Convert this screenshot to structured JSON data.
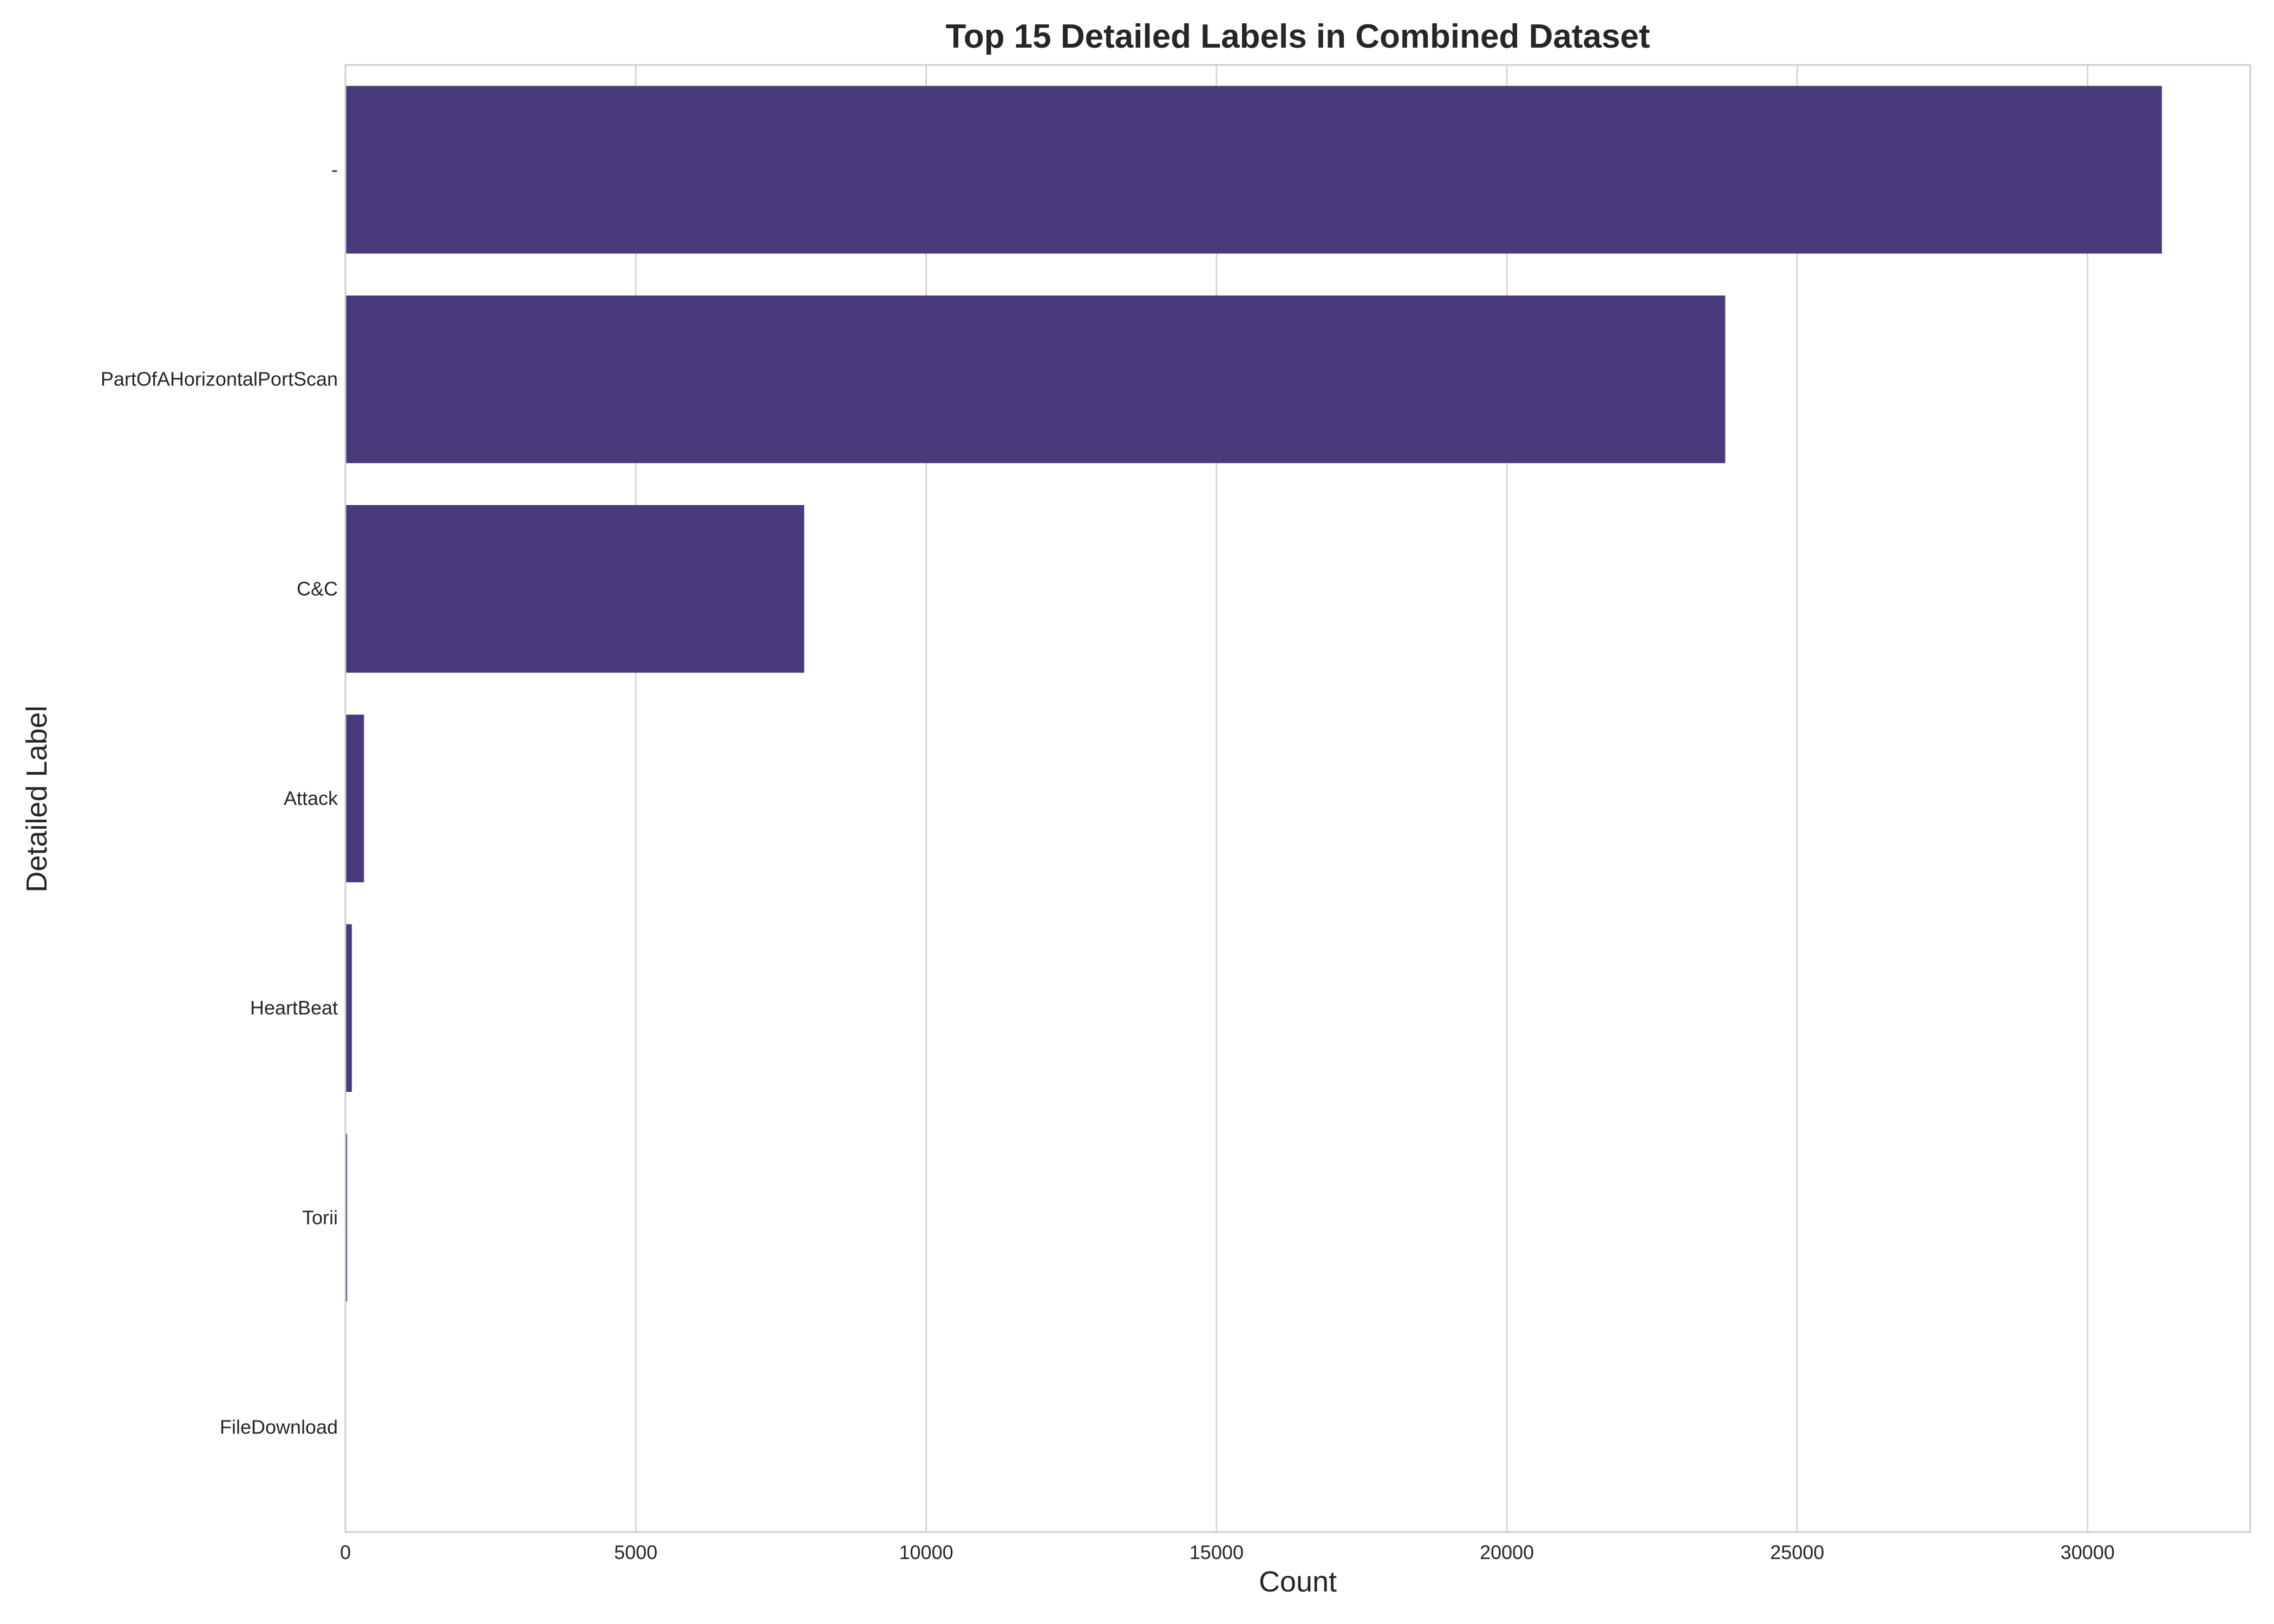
{
  "chart_data": {
    "type": "bar",
    "orientation": "horizontal",
    "title": "Top 15 Detailed Labels in Combined Dataset",
    "xlabel": "Count",
    "ylabel": "Detailed Label",
    "categories": [
      "-",
      "PartOfAHorizontalPortScan",
      "C&C",
      "Attack",
      "HeartBeat",
      "Torii",
      "FileDownload"
    ],
    "values": [
      31280,
      23760,
      7900,
      320,
      110,
      30,
      10
    ],
    "xlim": [
      0,
      32800
    ],
    "xticks": [
      0,
      5000,
      10000,
      15000,
      20000,
      25000,
      30000
    ],
    "xtick_labels": [
      "0",
      "5000",
      "10000",
      "15000",
      "20000",
      "25000",
      "30000"
    ],
    "grid": "vertical",
    "colors": {
      "bar": "#483a7b",
      "grid": "#d6d6d6",
      "spine": "#cccccc"
    }
  }
}
